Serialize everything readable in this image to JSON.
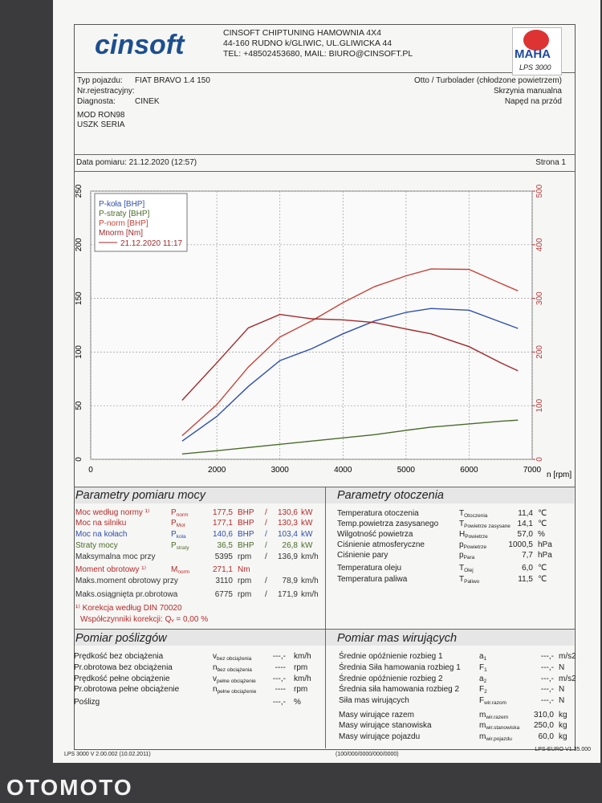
{
  "header": {
    "logo": "cinsoft",
    "company": "CINSOFT CHIPTUNING HAMOWNIA 4X4",
    "address": "44-160 RUDNO k/GLIWIC, UL.GLIWICKA 44",
    "contact": "TEL: +48502453680, MAIL: BIURO@CINSOFT.PL",
    "brand": "MAHA",
    "model": "LPS 3000"
  },
  "vehicle": {
    "rows": [
      {
        "label": "Typ pojazdu:",
        "value": "FIAT BRAVO 1.4 150"
      },
      {
        "label": "Nr.rejestracyjny:"
      },
      {
        "label": "Diagnosta:",
        "value": "CINEK"
      }
    ],
    "details": [
      "Otto / Turbolader (chłodzone powietrzem)",
      "Skrzynia manualna",
      "Napęd na przód"
    ]
  },
  "notes": [
    "MOD RON98",
    "USZK SERIA"
  ],
  "date": "Data pomiaru: 21.12.2020 (12:57)",
  "page": "Strona 1",
  "chart_data": {
    "type": "line",
    "x": [
      1450,
      2000,
      2500,
      3000,
      3500,
      4000,
      4500,
      5000,
      5395,
      6000,
      6500,
      6775
    ],
    "series": [
      {
        "name": "P-koła [BHP]",
        "color": "#2f4fb0",
        "values": [
          17,
          40,
          68,
          92,
          103,
          117,
          129,
          137,
          140.6,
          139,
          128,
          122
        ]
      },
      {
        "name": "P-straty [BHP]",
        "color": "#4a6b2a",
        "values": [
          5,
          8,
          11,
          14,
          17,
          20,
          23,
          27,
          30,
          33,
          35.5,
          36.5
        ]
      },
      {
        "name": "P-norm [BHP]",
        "color": "#c8443a",
        "values": [
          22,
          51,
          86,
          114,
          129,
          146,
          161,
          171,
          177.5,
          177,
          164,
          157
        ]
      },
      {
        "name": "Mnorm [Nm]",
        "color": "#a3282a",
        "axis": "y2",
        "values": [
          110,
          180,
          245,
          270,
          262,
          260,
          255,
          243,
          234,
          210,
          180,
          165
        ]
      }
    ],
    "legend_date": "21.12.2020 11:17",
    "xlabel": "n [rpm]",
    "xlim": [
      0,
      7000
    ],
    "xticks": [
      0,
      2000,
      3000,
      4000,
      5000,
      6000,
      7000
    ],
    "ylim": [
      0,
      250
    ],
    "yticks": [
      0,
      50,
      100,
      150,
      200,
      250
    ],
    "y2lim": [
      0,
      500
    ],
    "y2ticks": [
      0,
      100,
      200,
      300,
      400,
      500
    ],
    "y2color": "#b33a3a",
    "grid": true
  },
  "power": {
    "title": "Parametry pomiaru mocy",
    "rows": [
      {
        "label": "Moc według normy ¹⁾",
        "symbol": {
          "main": "P",
          "sub": "norm"
        },
        "v1": "177,5",
        "u1": "BHP",
        "sep": "/",
        "v2": "130,6",
        "u2": "kW",
        "color": "#b52a2a"
      },
      {
        "label": "Moc na silniku",
        "symbol": {
          "main": "P",
          "sub": "Mot"
        },
        "v1": "177,1",
        "u1": "BHP",
        "sep": "/",
        "v2": "130,3",
        "u2": "kW",
        "color": "#b52a2a"
      },
      {
        "label": "Moc na kołach",
        "symbol": {
          "main": "P",
          "sub": "koła"
        },
        "v1": "140,6",
        "u1": "BHP",
        "sep": "/",
        "v2": "103,4",
        "u2": "kW",
        "color": "#2f4fb0"
      },
      {
        "label": "Straty mocy",
        "symbol": {
          "main": "P",
          "sub": "straty"
        },
        "v1": "36,5",
        "u1": "BHP",
        "sep": "/",
        "v2": "26,8",
        "u2": "kW",
        "color": "#4a6b2a"
      },
      {
        "label": "Maksymalna moc przy",
        "v1": "5395",
        "u1": "rpm",
        "sep": "/",
        "v2": "136,9",
        "u2": "km/h"
      },
      {
        "label": "Moment obrotowy ¹⁾",
        "symbol": {
          "main": "M",
          "sub": "norm"
        },
        "v1": "271,1",
        "u1": "Nm",
        "color": "#b52a2a"
      },
      {
        "label": "Maks.moment obrotowy przy",
        "v1": "3110",
        "u1": "rpm",
        "sep": "/",
        "v2": "78,9",
        "u2": "km/h"
      },
      {
        "label": "Maks.osiągnięta pr.obrotowa",
        "v1": "6775",
        "u1": "rpm",
        "sep": "/",
        "v2": "171,9",
        "u2": "km/h"
      }
    ],
    "footnotes": [
      "¹⁾ Korekcja według DIN 70020",
      "Współczynniki korekcji: Qᵥ =  0,00 %"
    ],
    "footnote_color": "#b52a2a"
  },
  "environment": {
    "title": "Parametry otoczenia",
    "rows": [
      {
        "label": "Temperatura otoczenia",
        "symbol": {
          "main": "T",
          "sub": "Otoczenia"
        },
        "value": "11,4",
        "unit": "℃"
      },
      {
        "label": "Temp.powietrza zasysanego",
        "symbol": {
          "main": "T",
          "sub": "Powietrze zasysane"
        },
        "value": "14,1",
        "unit": "℃"
      },
      {
        "label": "Wilgotność powietrza",
        "symbol": {
          "main": "H",
          "sub": "Powietrze"
        },
        "value": "57,0",
        "unit": "%"
      },
      {
        "label": "Ciśnienie atmosferyczne",
        "symbol": {
          "main": "p",
          "sub": "Powietrze"
        },
        "value": "1000,5",
        "unit": "hPa"
      },
      {
        "label": "Ciśnienie pary",
        "symbol": {
          "main": "p",
          "sub": "Para"
        },
        "value": "7,7",
        "unit": "hPa"
      },
      {
        "label": "Temperatura oleju",
        "symbol": {
          "main": "T",
          "sub": "Olej"
        },
        "value": "6,0",
        "unit": "℃"
      },
      {
        "label": "Temperatura paliwa",
        "symbol": {
          "main": "T",
          "sub": "Paliwo"
        },
        "value": "11,5",
        "unit": "℃"
      }
    ]
  },
  "slip": {
    "title": "Pomiar poślizgów",
    "rows": [
      {
        "label": "Prędkość bez obciążenia",
        "symbol": {
          "main": "v",
          "sub": "bez obciążenia"
        },
        "value": "---,-",
        "unit": "km/h"
      },
      {
        "label": "Pr.obrotowa bez obciążenia",
        "symbol": {
          "main": "n",
          "sub": "bez obciążenia"
        },
        "value": "----",
        "unit": "rpm"
      },
      {
        "label": "Prędkość pełne obciążenie",
        "symbol": {
          "main": "v",
          "sub": "pełne obciążenie"
        },
        "value": "---,-",
        "unit": "km/h"
      },
      {
        "label": "Pr.obrotowa pełne obciążenie",
        "symbol": {
          "main": "n",
          "sub": "pełne obciążenie"
        },
        "value": "----",
        "unit": "rpm"
      },
      {
        "label": "Poślizg",
        "value": "---,-",
        "unit": "%"
      }
    ]
  },
  "masses": {
    "title": "Pomiar mas wirujących",
    "rows": [
      {
        "label": "Średnie opóźnienie rozbieg 1",
        "symbol": {
          "main": "a",
          "sub": "1"
        },
        "value": "---,-",
        "unit": "m/s2"
      },
      {
        "label": "Średnia Siła hamowania rozbieg 1",
        "symbol": {
          "main": "F",
          "sub": "1"
        },
        "value": "---,-",
        "unit": "N"
      },
      {
        "label": "Średnie opóźnienie rozbieg 2",
        "symbol": {
          "main": "a",
          "sub": "2"
        },
        "value": "---,-",
        "unit": "m/s2"
      },
      {
        "label": "Średnia siła hamowania rozbieg 2",
        "symbol": {
          "main": "F",
          "sub": "2"
        },
        "value": "---,-",
        "unit": "N"
      },
      {
        "label": "Siła mas wirujących",
        "symbol": {
          "main": "F",
          "sub": "wir.razom"
        },
        "value": "---,-",
        "unit": "N"
      },
      {
        "label": "Masy wirujące razem",
        "symbol": {
          "main": "m",
          "sub": "wir.razem"
        },
        "value": "310,0",
        "unit": "kg"
      },
      {
        "label": "Masy wirujące stanowiska",
        "symbol": {
          "main": "m",
          "sub": "wir.stanowiska"
        },
        "value": "250,0",
        "unit": "kg"
      },
      {
        "label": "Masy wirujące pojazdu",
        "symbol": {
          "main": "m",
          "sub": "wir.pojazdu"
        },
        "value": "60,0",
        "unit": "kg"
      }
    ]
  },
  "footer": {
    "left": "LPS 3000 V 2.00.002 (10.02.2011)",
    "middle": "(100/000/0000/000/0000)",
    "right": "LPS-EURO V1.35.000"
  },
  "watermark": "OTOMOTO"
}
